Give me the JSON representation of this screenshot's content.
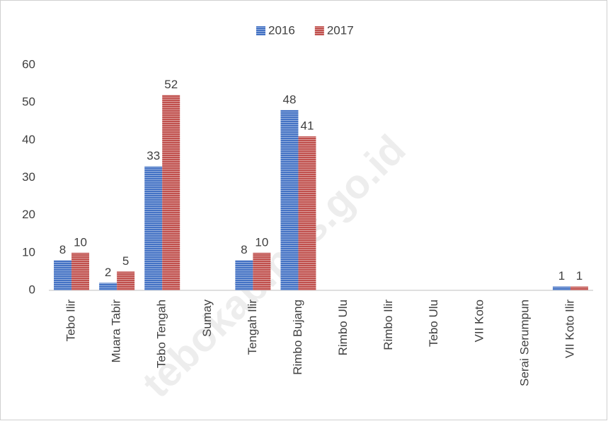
{
  "chart_data": {
    "type": "bar",
    "categories": [
      "Tebo Ilir",
      "Muara Tabir",
      "Tebo Tengah",
      "Sumay",
      "Tengah Ilir",
      "Rimbo Bujang",
      "Rimbo Ulu",
      "Rimbo Ilir",
      "Tebo Ulu",
      "VII Koto",
      "Serai Serumpun",
      "VII Koto Ilir"
    ],
    "series": [
      {
        "name": "2016",
        "color": "#4472c4",
        "values": [
          8,
          2,
          33,
          null,
          8,
          48,
          null,
          null,
          null,
          null,
          null,
          1
        ]
      },
      {
        "name": "2017",
        "color": "#c0504d",
        "values": [
          10,
          5,
          52,
          null,
          10,
          41,
          null,
          null,
          null,
          null,
          null,
          1
        ]
      }
    ],
    "ylim": [
      0,
      60
    ],
    "yticks": [
      0,
      10,
      20,
      30,
      40,
      50,
      60
    ],
    "grid": false,
    "legend": "top",
    "watermark": "tebokab.bps.go.id"
  }
}
